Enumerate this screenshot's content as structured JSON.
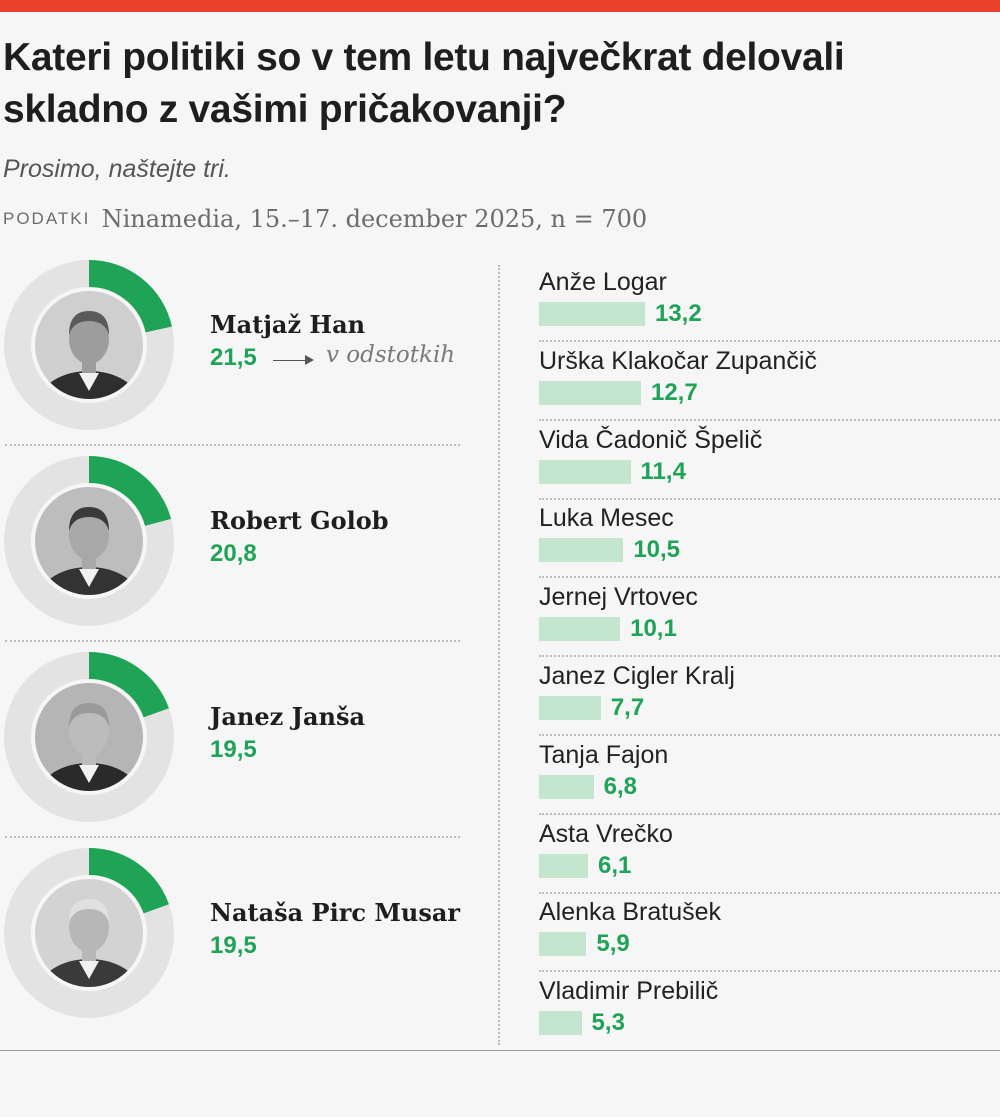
{
  "title": "Kateri politiki so v tem letu največkrat delovali skladno z vašimi pričakovanji?",
  "subtitle": "Prosimo, naštejte tri.",
  "source": {
    "label": "PODATKI",
    "text": "Ninamedia, 15.–17. december 2025, n = 700"
  },
  "unit_note": "v odstotkih",
  "colors": {
    "accent_bar": "#e8432a",
    "green": "#1fa356",
    "bar_fill": "#c5e6ce",
    "donut_track": "#e3e3e3"
  },
  "chart_data": [
    {
      "type": "pie",
      "title": "",
      "scale_max": 100,
      "categories": [
        "Matjaž Han",
        "Robert Golob",
        "Janez Janša",
        "Nataša Pirc Musar"
      ],
      "values": [
        21.5,
        20.8,
        19.5,
        19.5
      ],
      "value_labels": [
        "21,5",
        "20,8",
        "19,5",
        "19,5"
      ]
    },
    {
      "type": "bar",
      "orientation": "horizontal",
      "categories": [
        "Anže Logar",
        "Urška Klakočar Zupančič",
        "Vida Čadonič Špelič",
        "Luka Mesec",
        "Jernej Vrtovec",
        "Janez Cigler Kralj",
        "Tanja Fajon",
        "Asta Vrečko",
        "Alenka Bratušek",
        "Vladimir Prebilič"
      ],
      "values": [
        13.2,
        12.7,
        11.4,
        10.5,
        10.1,
        7.7,
        6.8,
        6.1,
        5.9,
        5.3
      ],
      "value_labels": [
        "13,2",
        "12,7",
        "11,4",
        "10,5",
        "10,1",
        "7,7",
        "6,8",
        "6,1",
        "5,9",
        "5,3"
      ]
    }
  ]
}
